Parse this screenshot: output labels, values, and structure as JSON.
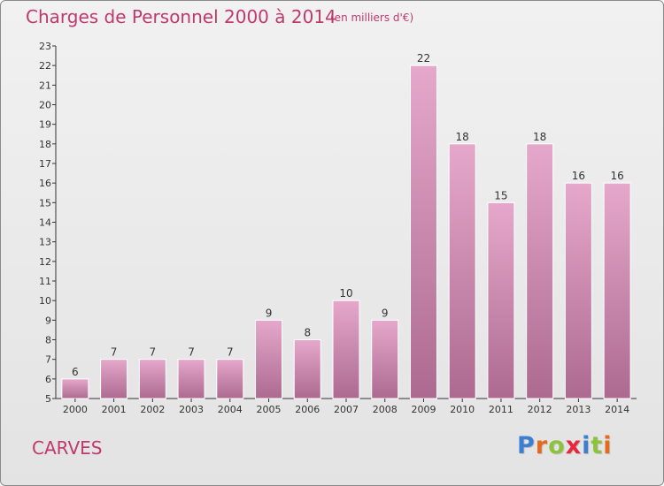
{
  "title": "Charges de Personnel 2000 à 2014",
  "subtitle": "(en milliers d'€)",
  "commune": "CARVES",
  "logo": {
    "text": "Proxiti",
    "letter_colors": [
      "#3a7fd0",
      "#e66a1c",
      "#8dc23e",
      "#e8273a",
      "#3a7fd0",
      "#8dc23e",
      "#e66a1c"
    ]
  },
  "colors": {
    "title": "#c0396b",
    "bar_top": "#e5a8cb",
    "bar_bottom": "#ad6a90",
    "axis": "#333333"
  },
  "chart_data": {
    "type": "bar",
    "categories": [
      "2000",
      "2001",
      "2002",
      "2003",
      "2004",
      "2005",
      "2006",
      "2007",
      "2008",
      "2009",
      "2010",
      "2011",
      "2012",
      "2013",
      "2014"
    ],
    "values": [
      6,
      7,
      7,
      7,
      7,
      9,
      8,
      10,
      9,
      22,
      18,
      15,
      18,
      16,
      16
    ],
    "ylim": [
      5,
      23
    ],
    "yticks": [
      5,
      6,
      7,
      8,
      9,
      10,
      11,
      12,
      13,
      14,
      15,
      16,
      17,
      18,
      19,
      20,
      21,
      22,
      23
    ],
    "grid": false,
    "legend": "none",
    "data_labels": true
  }
}
